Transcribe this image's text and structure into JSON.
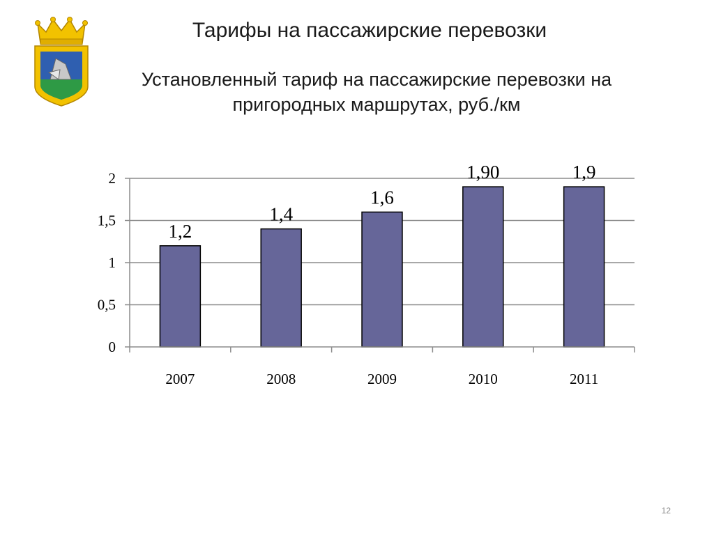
{
  "slide": {
    "title": "Тарифы на пассажирские перевозки",
    "page_number": "12"
  },
  "colors": {
    "bar_fill": "#666699",
    "bar_stroke": "#000000",
    "grid": "#8c8c8c"
  },
  "chart_data": {
    "type": "bar",
    "title": "Установленный тариф на пассажирские перевозки на пригородных маршрутах, руб./км",
    "xlabel": "",
    "ylabel": "",
    "categories": [
      "2007",
      "2008",
      "2009",
      "2010",
      "2011"
    ],
    "values": [
      1.2,
      1.4,
      1.6,
      1.9,
      1.9
    ],
    "data_labels": [
      "1,2",
      "1,4",
      "1,6",
      "1,90",
      "1,9"
    ],
    "ylim": [
      0,
      2
    ],
    "y_ticks": [
      0,
      0.5,
      1,
      1.5,
      2
    ],
    "y_tick_labels": [
      "0",
      "0,5",
      "1",
      "1,5",
      "2"
    ],
    "grid": true,
    "legend": "none"
  }
}
